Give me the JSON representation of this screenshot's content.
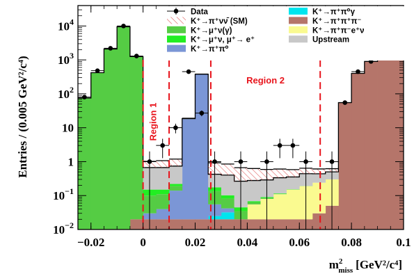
{
  "chart_data": {
    "type": "histogram",
    "title": "",
    "xlabel_main": "m",
    "xlabel_sup": "2",
    "xlabel_sub": "miss",
    "xlabel_units": "[GeV²/c⁴]",
    "ylabel": "Entries / (0.005 GeV²/c⁴)",
    "xlim": [
      -0.025,
      0.1
    ],
    "ylim": [
      0.01,
      40000
    ],
    "yscale": "log",
    "bin_width": 0.005,
    "x_ticks": [
      -0.02,
      0,
      0.02,
      0.04,
      0.06,
      0.08,
      0.1
    ],
    "x_tick_labels": [
      "−0.02",
      "0",
      "0.02",
      "0.04",
      "0.06",
      "0.08",
      "0.1"
    ],
    "y_ticks": [
      0.01,
      0.1,
      1,
      10,
      100,
      1000,
      10000
    ],
    "y_tick_labels": [
      {
        "base": "10",
        "exp": "−2"
      },
      {
        "base": "10",
        "exp": "−1"
      },
      {
        "base": "1",
        "exp": ""
      },
      {
        "base": "10",
        "exp": ""
      },
      {
        "base": "10",
        "exp": "2"
      },
      {
        "base": "10",
        "exp": "3"
      },
      {
        "base": "10",
        "exp": "4"
      }
    ],
    "region_lines": [
      0,
      0.01,
      0.026,
      0.068
    ],
    "region_labels": [
      {
        "text": "Region 1",
        "x": 0.005,
        "y": 15
      },
      {
        "text": "Region 2",
        "x": 0.047,
        "y": 200
      }
    ],
    "legend": [
      {
        "label": "Data",
        "kind": "marker"
      },
      {
        "label": "K⁺→π⁺π⁰γ",
        "kind": "fill",
        "color": "#00e5ee"
      },
      {
        "label": "K⁺→π⁺νν̄ (SM)",
        "kind": "hatch",
        "color": "#e06060"
      },
      {
        "label": "K⁺→π⁺π⁺π⁻",
        "kind": "fill",
        "color": "#b5756a"
      },
      {
        "label": "K⁺→μ⁺ν(γ)",
        "kind": "fill",
        "color": "#55cc44"
      },
      {
        "label": "K⁺→π⁺π⁻e⁺ν",
        "kind": "fill",
        "color": "#fafa90"
      },
      {
        "label": "K⁺→μ⁺ν, μ⁺→ e⁺",
        "kind": "fill",
        "color": "#22ee22"
      },
      {
        "label": "Upstream",
        "kind": "fill",
        "color": "#c8c8c8"
      },
      {
        "label": "K⁺→π⁺π⁰",
        "kind": "fill",
        "color": "#7b96d6"
      }
    ],
    "bin_edges_start": -0.025,
    "bin_count": 25,
    "stack_series": [
      {
        "name": "K⁺→π⁺π⁺π⁻",
        "color": "#b5756a",
        "values": [
          0,
          0,
          0,
          0,
          0.02,
          0.02,
          0.02,
          0.02,
          0.02,
          0.02,
          0.02,
          0.02,
          0.02,
          0.02,
          0.02,
          0.02,
          0.02,
          0.02,
          0.03,
          0.05,
          55,
          400,
          900,
          1400,
          3000
        ]
      },
      {
        "name": "K⁺→π⁺π⁻e⁺ν",
        "color": "#fafa90",
        "values": [
          0,
          0,
          0,
          0,
          0,
          0,
          0,
          0,
          0,
          0,
          0,
          0,
          0,
          0.035,
          0.06,
          0.09,
          0.13,
          0.17,
          0.21,
          0.25,
          0.27,
          0.27,
          0.27,
          0.27,
          0.27
        ]
      },
      {
        "name": "K⁺→π⁺π⁰γ",
        "color": "#00e5ee",
        "values": [
          0,
          0,
          0,
          0,
          0,
          0,
          0,
          0,
          0,
          0,
          0.005,
          0.012,
          0,
          0,
          0,
          0,
          0,
          0,
          0,
          0,
          0,
          0,
          0,
          0,
          0
        ]
      },
      {
        "name": "K⁺→π⁺π⁰",
        "color": "#7b96d6",
        "values": [
          0,
          0,
          0,
          0,
          0,
          0.01,
          0.02,
          0.12,
          18,
          380,
          0.03,
          0.01,
          0,
          0,
          0,
          0,
          0,
          0,
          0,
          0,
          0,
          0,
          0,
          0,
          0
        ]
      },
      {
        "name": "K⁺→μ⁺ν(γ)",
        "color": "#55cc44",
        "values": [
          75,
          420,
          2100,
          9500,
          1250,
          0.07,
          0.07,
          0.05,
          0.03,
          0.03,
          0.08,
          0.04,
          0.015,
          0.008,
          0.005,
          0.003,
          0.002,
          0.001,
          0,
          0,
          0,
          0,
          0,
          0,
          0
        ]
      },
      {
        "name": "K⁺→μ⁺ν, μ⁺→ e⁺",
        "color": "#22ee22",
        "values": [
          0,
          0,
          0,
          0,
          0,
          0.05,
          0.04,
          0.03,
          0.02,
          0.02,
          0.04,
          0.02,
          0.01,
          0.005,
          0.005,
          0.003,
          0.002,
          0.001,
          0,
          0,
          0,
          0,
          0,
          0,
          0
        ]
      },
      {
        "name": "Upstream",
        "color": "#c8c8c8",
        "values": [
          0,
          0,
          0,
          0,
          0,
          0.52,
          0.52,
          0.52,
          0.5,
          0.5,
          0.25,
          0.3,
          0.22,
          0.21,
          0.2,
          0.22,
          0.2,
          0.25,
          0.2,
          0.2,
          0,
          0,
          0,
          0,
          0
        ]
      }
    ],
    "sm_signal": {
      "name": "K⁺→π⁺νν̄ (SM)",
      "color": "#e06060",
      "values": [
        0,
        0,
        0,
        0,
        0,
        0.35,
        0.4,
        0.45,
        0.5,
        0.5,
        0.5,
        0.45,
        0.4,
        0.35,
        0.3,
        0.27,
        0.23,
        0.2,
        0.17,
        0.12,
        0,
        0,
        0,
        0,
        0
      ]
    },
    "data": [
      {
        "x": -0.0225,
        "y": 80
      },
      {
        "x": -0.0175,
        "y": 480
      },
      {
        "x": -0.0125,
        "y": 2200
      },
      {
        "x": -0.0075,
        "y": 10000
      },
      {
        "x": -0.0025,
        "y": 1300
      },
      {
        "x": 0.0025,
        "y": 1
      },
      {
        "x": 0.0075,
        "y": 3
      },
      {
        "x": 0.0125,
        "y": 10
      },
      {
        "x": 0.0175,
        "y": 450
      },
      {
        "x": 0.0225,
        "y": 27
      },
      {
        "x": 0.0275,
        "y": 1
      },
      {
        "x": 0.0375,
        "y": 1
      },
      {
        "x": 0.0475,
        "y": 1
      },
      {
        "x": 0.0525,
        "y": 3
      },
      {
        "x": 0.0575,
        "y": 3
      },
      {
        "x": 0.0625,
        "y": 1
      },
      {
        "x": 0.0725,
        "y": 1
      },
      {
        "x": 0.0775,
        "y": 55
      },
      {
        "x": 0.0825,
        "y": 450
      },
      {
        "x": 0.0875,
        "y": 900
      },
      {
        "x": 0.0925,
        "y": 1400
      },
      {
        "x": 0.0975,
        "y": 3000
      }
    ]
  }
}
